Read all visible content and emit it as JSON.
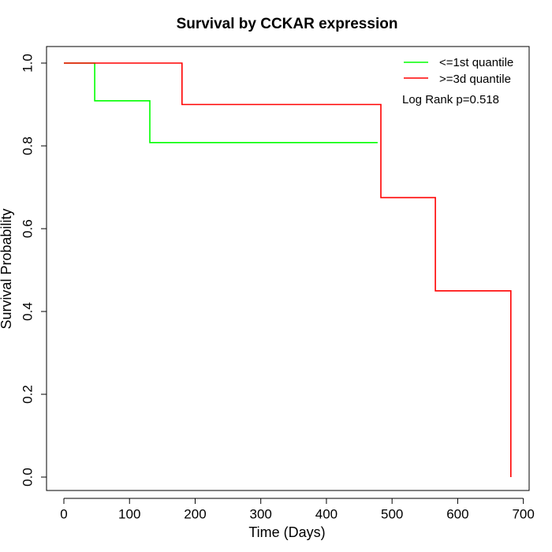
{
  "chart_data": {
    "type": "line",
    "step": true,
    "title": "Survival by CCKAR expression",
    "xlabel": "Time (Days)",
    "ylabel": "Survival Probability",
    "xlim": [
      0,
      700
    ],
    "ylim": [
      0,
      1
    ],
    "xticks": [
      0,
      100,
      200,
      300,
      400,
      500,
      600,
      700
    ],
    "yticks": [
      0.0,
      0.2,
      0.4,
      0.6,
      0.8,
      1.0
    ],
    "xtick_labels": [
      "0",
      "100",
      "200",
      "300",
      "400",
      "500",
      "600",
      "700"
    ],
    "ytick_labels": [
      "0.0",
      "0.2",
      "0.4",
      "0.6",
      "0.8",
      "1.0"
    ],
    "grid": false,
    "legend_position": "top-right",
    "annotation": "Log Rank p=0.518",
    "series": [
      {
        "name": "<=1st quantile",
        "color": "#00ff00",
        "x": [
          0,
          47,
          47,
          131,
          131,
          478
        ],
        "y": [
          1.0,
          1.0,
          0.909,
          0.909,
          0.808,
          0.808
        ]
      },
      {
        "name": ">=3d quantile",
        "color": "#ff0000",
        "x": [
          0,
          180,
          180,
          483,
          483,
          566,
          566,
          681,
          681
        ],
        "y": [
          1.0,
          1.0,
          0.9,
          0.9,
          0.675,
          0.675,
          0.45,
          0.45,
          0.0
        ]
      }
    ]
  }
}
